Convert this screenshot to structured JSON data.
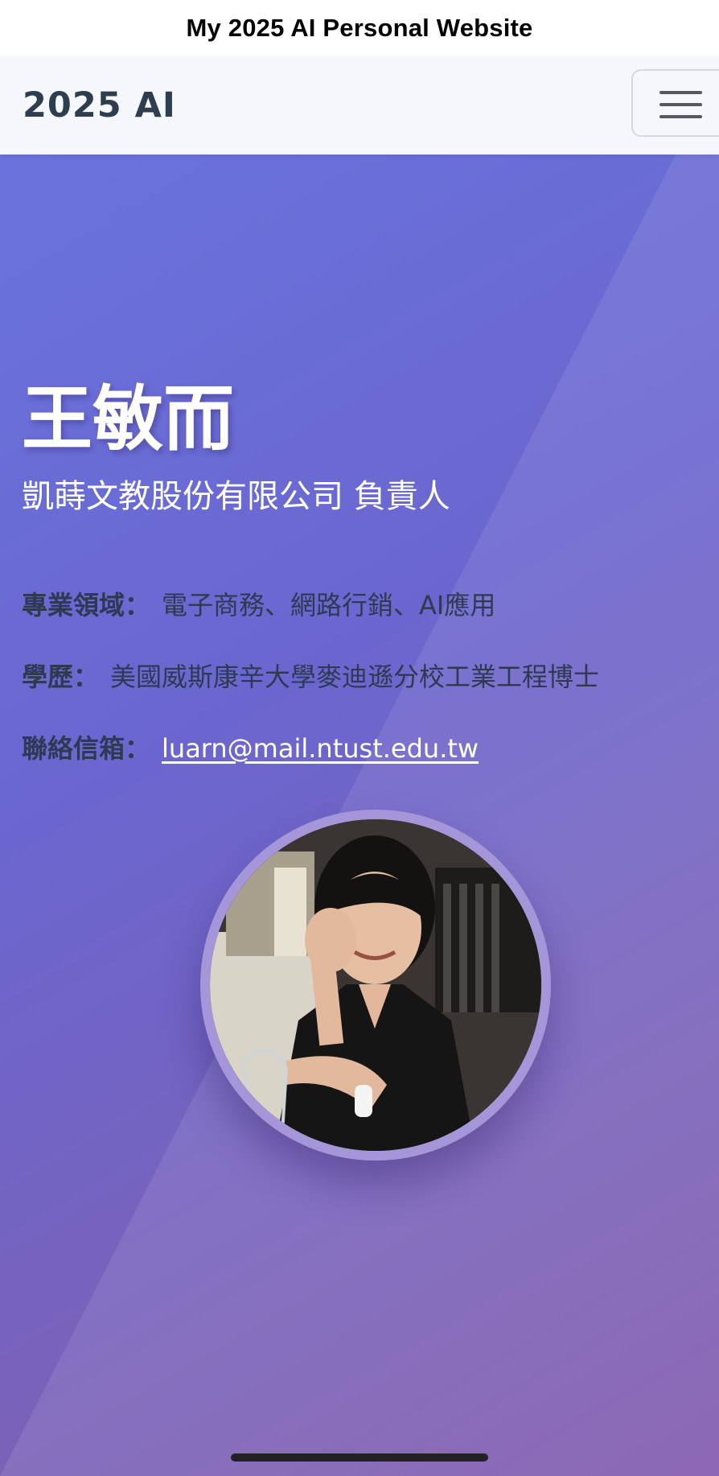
{
  "page_title": "My 2025 AI Personal Website",
  "navbar": {
    "brand": "2025 AI",
    "menu_icon": "hamburger-menu-icon"
  },
  "profile": {
    "name": "王敏而",
    "role": "凱蒔文教股份有限公司 負責人",
    "fields_label": "專業領域：",
    "fields_value": "電子商務、網路行銷、AI應用",
    "education_label": "學歷：",
    "education_value": "美國威斯康辛大學麥迪遜分校工業工程博士",
    "email_label": "聯絡信箱：",
    "email_value": "luarn@mail.ntust.edu.tw"
  },
  "colors": {
    "brand_text": "#2c3e50",
    "info_text": "#2d3a52",
    "gradient_start": "#6a73dd",
    "gradient_end": "#825aae",
    "avatar_ring": "#a596da"
  }
}
